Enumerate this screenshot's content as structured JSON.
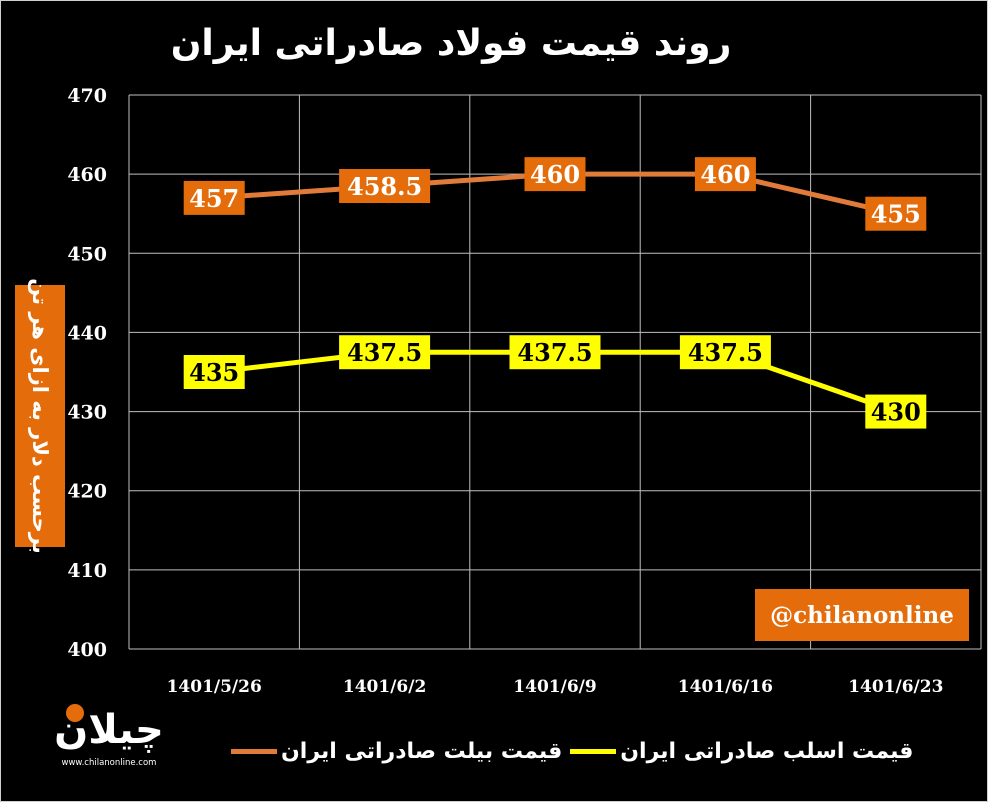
{
  "chart_data": {
    "type": "line",
    "title": "روند قیمت فولاد صادراتی ایران",
    "ylabel": "برحسب دلار به ازای هر تن",
    "xlabel": "",
    "categories": [
      "1401/5/26",
      "1401/6/2",
      "1401/6/9",
      "1401/6/16",
      "1401/6/23"
    ],
    "ylim": [
      400,
      470
    ],
    "yticks": [
      400,
      410,
      420,
      430,
      440,
      450,
      460,
      470
    ],
    "grid": true,
    "legend_position": "bottom",
    "series": [
      {
        "name": "قیمت بیلت صادراتی ایران",
        "values": [
          457,
          458.5,
          460,
          460,
          455
        ],
        "labels": [
          "457",
          "458.5",
          "460",
          "460",
          "455"
        ],
        "color": "#e07b39",
        "label_bg": "#e46c0a",
        "label_color": "#ffffff"
      },
      {
        "name": "قیمت اسلب صادراتی ایران",
        "values": [
          435,
          437.5,
          437.5,
          437.5,
          430
        ],
        "labels": [
          "435",
          "437.5",
          "437.5",
          "437.5",
          "430"
        ],
        "color": "#ffff00",
        "label_bg": "#ffff00",
        "label_color": "#000000"
      }
    ]
  },
  "watermark": "@chilanonline",
  "logo": {
    "text": "چیلان",
    "url_text": "www.chilanonline.com"
  },
  "colors": {
    "background": "#000000",
    "grid": "#bfbfbf",
    "accent": "#e46c0a"
  }
}
